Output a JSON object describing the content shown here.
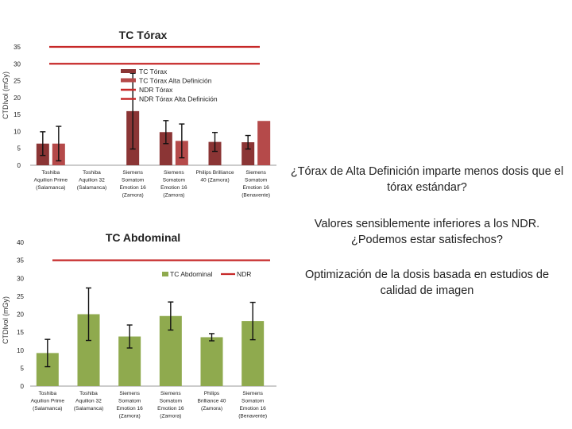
{
  "notes": [
    "¿Tórax de Alta Definición imparte menos dosis que el tórax estándar?",
    "Valores sensiblemente inferiores a los NDR. ¿Podemos estar satisfechos?",
    "Optimización de la dosis basada en estudios de calidad de imagen"
  ],
  "colors": {
    "thorax": "#8b3535",
    "thorax_hd": "#b54a4a",
    "ndr": "#c62828",
    "abdominal": "#8faa4e"
  },
  "chart_data": [
    {
      "type": "bar",
      "title": "TC Tórax",
      "ylabel": "CTDIvol (mGy)",
      "ylim": [
        0,
        35
      ],
      "yticks": [
        0,
        5,
        10,
        15,
        20,
        25,
        30,
        35
      ],
      "categories": [
        [
          "Toshiba",
          "Aquilion Prime",
          "(Salamanca)"
        ],
        [
          "Toshiba",
          "Aquilion 32",
          "(Salamanca)"
        ],
        [
          "Siemens",
          "Somatom",
          "Emotion 16",
          "(Zamora)"
        ],
        [
          "Siemens",
          "Somatom",
          "Emotion 16",
          "(Zamora)"
        ],
        [
          "Philips Brilliance",
          "40 (Zamora)"
        ],
        [
          "Siemens",
          "Somatom",
          "Emotion 16",
          "(Benavente)"
        ]
      ],
      "series": [
        {
          "name": "TC Tórax",
          "values": [
            6.4,
            null,
            16,
            9.8,
            6.9,
            6.8
          ],
          "errors": [
            3.5,
            null,
            11.2,
            3.4,
            2.8,
            2.0
          ]
        },
        {
          "name": "TC Tórax Alta Definición",
          "values": [
            6.4,
            null,
            null,
            7.2,
            null,
            13.1
          ],
          "errors": [
            5.1,
            null,
            null,
            5.0,
            null,
            null
          ]
        },
        {
          "name": "NDR Tórax",
          "value": 30
        },
        {
          "name": "NDR Tórax Alta Definición",
          "value": 35
        }
      ],
      "legend": "center-right"
    },
    {
      "type": "bar",
      "title": "TC Abdominal",
      "ylabel": "CTDIvol (mGy)",
      "ylim": [
        0,
        40
      ],
      "yticks": [
        0,
        5,
        10,
        15,
        20,
        25,
        30,
        35,
        40
      ],
      "categories": [
        [
          "Toshiba",
          "Aquilion Prime",
          "(Salamanca)"
        ],
        [
          "Toshiba",
          "Aquilion 32",
          "(Salamanca)"
        ],
        [
          "Siemens",
          "Somatom",
          "Emotion 16",
          "(Zamora)"
        ],
        [
          "Siemens",
          "Somatom",
          "Emotion 16",
          "(Zamora)"
        ],
        [
          "Philips",
          "Brilliance 40",
          "(Zamora)"
        ],
        [
          "Siemens",
          "Somatom",
          "Emotion 16",
          "(Benavente)"
        ]
      ],
      "series": [
        {
          "name": "TC Abdominal",
          "values": [
            9.2,
            20,
            13.8,
            19.5,
            13.6,
            18.1
          ],
          "errors": [
            3.8,
            7.3,
            3.2,
            3.9,
            1.0,
            5.2
          ]
        },
        {
          "name": "NDR",
          "value": 35
        }
      ],
      "legend": "top-right"
    }
  ]
}
